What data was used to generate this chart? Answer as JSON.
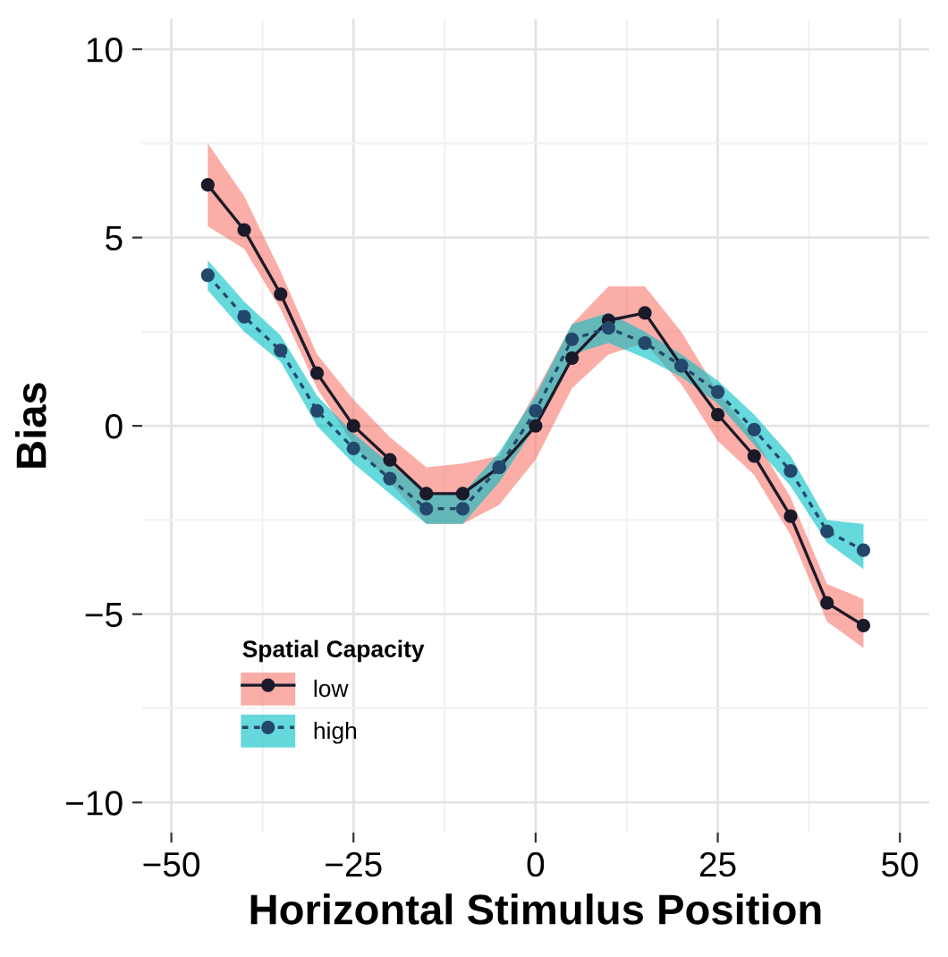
{
  "chart_data": {
    "type": "line",
    "xlabel": "Horizontal Stimulus Position",
    "ylabel": "Bias",
    "legend_title": "Spatial Capacity",
    "x": [
      -45,
      -40,
      -35,
      -30,
      -25,
      -20,
      -15,
      -10,
      -5,
      0,
      5,
      10,
      15,
      20,
      25,
      30,
      35,
      40,
      45
    ],
    "series": [
      {
        "name": "low",
        "color": "#1a1a2a",
        "line_style": "solid",
        "values": [
          6.4,
          5.2,
          3.5,
          1.4,
          0.0,
          -0.9,
          -1.8,
          -1.8,
          -1.1,
          0.0,
          1.8,
          2.8,
          3.0,
          1.6,
          0.3,
          -0.8,
          -2.4,
          -4.7,
          -5.3
        ],
        "lower": [
          5.3,
          4.7,
          3.1,
          1.0,
          -0.5,
          -1.5,
          -2.6,
          -2.6,
          -2.1,
          -0.9,
          1.0,
          1.9,
          2.2,
          1.1,
          -0.4,
          -1.3,
          -2.9,
          -5.2,
          -5.9
        ],
        "upper": [
          7.5,
          6.1,
          4.1,
          1.9,
          0.7,
          -0.3,
          -1.1,
          -1.0,
          -0.8,
          0.9,
          2.7,
          3.7,
          3.7,
          2.5,
          0.9,
          -0.3,
          -1.9,
          -4.2,
          -4.6
        ]
      },
      {
        "name": "high",
        "color": "#24486c",
        "line_style": "dashed",
        "values": [
          4.0,
          2.9,
          2.0,
          0.4,
          -0.6,
          -1.4,
          -2.2,
          -2.2,
          -1.1,
          0.4,
          2.3,
          2.6,
          2.2,
          1.6,
          0.9,
          -0.1,
          -1.2,
          -2.8,
          -3.3
        ],
        "lower": [
          3.6,
          2.5,
          1.7,
          0.0,
          -1.0,
          -1.8,
          -2.6,
          -2.6,
          -1.5,
          0.0,
          1.9,
          2.2,
          1.8,
          1.3,
          0.6,
          -0.5,
          -1.6,
          -3.1,
          -3.8
        ],
        "upper": [
          4.4,
          3.3,
          2.4,
          0.8,
          -0.2,
          -1.0,
          -1.8,
          -1.8,
          -0.7,
          0.8,
          2.7,
          3.0,
          2.5,
          1.9,
          1.2,
          0.3,
          -0.8,
          -2.5,
          -2.6
        ]
      }
    ],
    "xlim": [
      -54,
      54
    ],
    "ylim": [
      -10.8,
      10.8
    ],
    "xticks": [
      {
        "value": -50,
        "label": "−50"
      },
      {
        "value": -25,
        "label": "−25"
      },
      0,
      25,
      50
    ],
    "yticks": [
      {
        "value": -10,
        "label": "−10"
      },
      {
        "value": -5,
        "label": "−5"
      },
      0,
      5,
      10
    ],
    "grid": true,
    "legend": "bottom left",
    "marker": "circle"
  }
}
